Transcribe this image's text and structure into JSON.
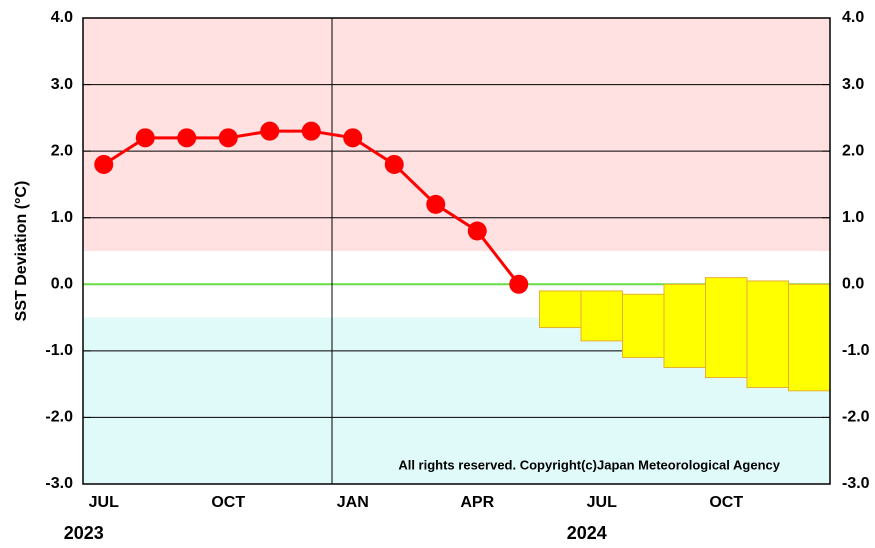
{
  "chart_data": {
    "type": "line",
    "y_label": "SST Deviation (°C)",
    "annotation": "All rights reserved. Copyright(c)Japan Meteorological Agency",
    "categories": [
      "JUL",
      null,
      null,
      "OCT",
      null,
      null,
      "JAN",
      null,
      null,
      "APR",
      null,
      null,
      "JUL",
      null,
      null,
      "OCT",
      null,
      null
    ],
    "years": [
      "2023",
      "2024"
    ],
    "series": [
      {
        "name": "Observed",
        "color": "#ff0000",
        "values": [
          1.8,
          2.2,
          2.2,
          2.2,
          2.3,
          2.3,
          2.2,
          1.8,
          1.2,
          0.8,
          0.0,
          null,
          null,
          null,
          null,
          null,
          null,
          null
        ]
      }
    ],
    "forecast": {
      "color": "#ffff00",
      "edge": "#e8b030",
      "high": [
        null,
        null,
        null,
        null,
        null,
        null,
        null,
        null,
        null,
        null,
        null,
        -0.1,
        -0.1,
        -0.15,
        0.0,
        0.1,
        0.05,
        0.0
      ],
      "low": [
        null,
        null,
        null,
        null,
        null,
        null,
        null,
        null,
        null,
        null,
        null,
        -0.65,
        -0.85,
        -1.1,
        -1.25,
        -1.4,
        -1.55,
        -1.6
      ]
    },
    "shading": [
      {
        "from": 0.5,
        "to": 4.0,
        "color": "#ffe1e1"
      },
      {
        "from": -3.0,
        "to": -0.5,
        "color": "#e0fafa"
      }
    ],
    "zero_line_color": "#66dd44",
    "ylim": [
      -3.0,
      4.0
    ],
    "yticks": [
      {
        "value": -3,
        "label": "-3.0"
      },
      {
        "value": -2,
        "label": "-2.0"
      },
      {
        "value": -1,
        "label": "-1.0"
      },
      {
        "value": 0,
        "label": "0.0"
      },
      {
        "value": 1,
        "label": "1.0"
      },
      {
        "value": 2,
        "label": "2.0"
      },
      {
        "value": 3,
        "label": "3.0"
      },
      {
        "value": 4,
        "label": "4.0"
      }
    ],
    "grid": true
  }
}
